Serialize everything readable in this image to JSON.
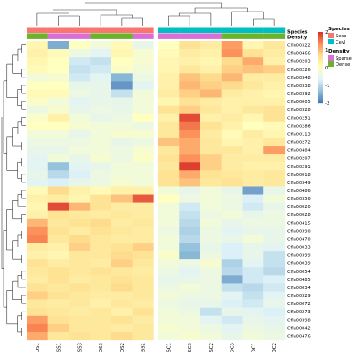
{
  "chart_data": {
    "type": "heatmap",
    "title": "",
    "xlabel": "",
    "ylabel": "",
    "columns": [
      "DS1",
      "SS1",
      "SS3",
      "DS3",
      "DS2",
      "SS2",
      "SC1",
      "SC3",
      "SC2",
      "DC3",
      "DC1",
      "DC2"
    ],
    "rows": [
      "Cflu00322",
      "Cflu00466",
      "Cflu00203",
      "Cflu00226",
      "Cflu00348",
      "Cflu00338",
      "Cflu00392",
      "Cflu00005",
      "Cflu00328",
      "Cflu00251",
      "Cflu00286",
      "Cflu00113",
      "Cflu00272",
      "Cflu00484",
      "Cflu00207",
      "Cflu00291",
      "Cflu00018",
      "Cflu00349",
      "Cflu00486",
      "Cflu00356",
      "Cflu00020",
      "Cflu00028",
      "Cflu00415",
      "Cflu00390",
      "Cflu00470",
      "Cflu00033",
      "Cflu00399",
      "Cflu00039",
      "Cflu00054",
      "Cflu00485",
      "Cflu00034",
      "Cflu00329",
      "Cflu00072",
      "Cflu00273",
      "Cflu00398",
      "Cflu00042",
      "Cflu00476"
    ],
    "values": [
      [
        0.2,
        -1.5,
        0.0,
        -0.3,
        0.1,
        -0.5,
        0.0,
        0.6,
        0.4,
        1.2,
        0.2,
        0.5
      ],
      [
        0.3,
        0.1,
        -0.4,
        -0.6,
        0.2,
        -0.2,
        0.1,
        0.4,
        0.3,
        1.3,
        0.6,
        0.4
      ],
      [
        0.2,
        0.0,
        -0.8,
        -0.9,
        0.0,
        -0.2,
        0.2,
        0.3,
        0.2,
        0.7,
        1.1,
        0.3
      ],
      [
        0.1,
        0.0,
        -0.9,
        -0.8,
        -0.1,
        -0.3,
        0.2,
        0.5,
        0.3,
        0.8,
        0.9,
        0.8
      ],
      [
        -0.3,
        -0.2,
        -0.8,
        -0.6,
        -1.4,
        -0.4,
        0.3,
        0.9,
        0.7,
        1.0,
        0.4,
        0.4
      ],
      [
        0.0,
        0.0,
        -0.5,
        -0.5,
        -1.7,
        -0.6,
        0.3,
        1.0,
        0.8,
        0.7,
        0.5,
        0.3
      ],
      [
        0.1,
        0.1,
        -0.4,
        -0.5,
        -0.9,
        -0.3,
        0.4,
        0.8,
        1.0,
        0.4,
        0.3,
        0.2
      ],
      [
        -0.1,
        -0.3,
        -0.6,
        -0.5,
        -0.5,
        -0.3,
        0.2,
        0.6,
        0.4,
        0.3,
        0.3,
        0.3
      ],
      [
        -0.4,
        -0.2,
        -0.5,
        -0.4,
        -0.5,
        -0.3,
        0.6,
        0.8,
        0.5,
        0.3,
        0.5,
        0.6
      ],
      [
        -0.1,
        0.3,
        -0.3,
        -0.5,
        -0.4,
        0.0,
        0.3,
        1.8,
        0.3,
        0.4,
        0.2,
        0.6
      ],
      [
        0.0,
        0.0,
        -0.2,
        -0.3,
        -0.3,
        -0.4,
        0.5,
        1.5,
        0.6,
        0.3,
        0.0,
        0.1
      ],
      [
        -0.3,
        -0.3,
        -0.5,
        -0.3,
        -0.2,
        -0.2,
        0.5,
        1.3,
        0.4,
        0.1,
        0.4,
        0.2
      ],
      [
        -0.4,
        -0.4,
        -0.4,
        -0.3,
        -0.5,
        -0.4,
        0.9,
        1.1,
        0.5,
        0.2,
        0.3,
        0.5
      ],
      [
        -0.5,
        -0.5,
        -0.3,
        -0.3,
        -0.4,
        -0.2,
        0.5,
        1.1,
        0.5,
        0.5,
        0.3,
        1.2
      ],
      [
        -0.6,
        -0.3,
        -0.5,
        -0.2,
        -0.4,
        -0.1,
        0.6,
        1.3,
        0.8,
        0.4,
        0.4,
        0.4
      ],
      [
        -0.6,
        -1.3,
        -0.6,
        -0.5,
        -0.3,
        -0.3,
        0.5,
        1.9,
        0.8,
        0.4,
        0.3,
        0.3
      ],
      [
        -0.5,
        -1.0,
        -0.7,
        -0.4,
        -0.3,
        -0.3,
        0.6,
        1.1,
        0.6,
        0.5,
        0.4,
        0.5
      ],
      [
        -0.6,
        -0.7,
        -0.5,
        -0.4,
        -0.2,
        -0.3,
        0.6,
        0.9,
        0.5,
        0.6,
        0.4,
        0.5
      ],
      [
        0.1,
        0.7,
        0.3,
        0.1,
        0.3,
        0.3,
        -0.3,
        -0.5,
        -0.3,
        -0.5,
        -1.6,
        -0.5
      ],
      [
        0.3,
        0.4,
        0.2,
        0.6,
        0.9,
        1.7,
        0.0,
        -0.4,
        -0.3,
        -0.4,
        -0.7,
        -0.3
      ],
      [
        0.2,
        1.8,
        1.0,
        0.6,
        0.4,
        0.4,
        -0.3,
        -0.8,
        -0.3,
        -0.4,
        -0.8,
        -0.5
      ],
      [
        0.3,
        0.6,
        0.5,
        0.4,
        0.5,
        0.4,
        -0.3,
        -0.9,
        -0.4,
        -0.3,
        -0.5,
        -0.4
      ],
      [
        1.0,
        0.5,
        0.6,
        0.7,
        0.4,
        0.5,
        -0.3,
        -1.0,
        -0.3,
        -0.5,
        -0.4,
        -0.4
      ],
      [
        1.3,
        0.6,
        0.4,
        0.6,
        0.5,
        0.4,
        -0.4,
        -1.1,
        -0.4,
        -0.6,
        -0.5,
        -0.5
      ],
      [
        1.4,
        0.5,
        0.7,
        0.5,
        0.4,
        0.4,
        -0.3,
        -1.0,
        -0.4,
        -0.5,
        -0.3,
        -0.5
      ],
      [
        0.4,
        0.3,
        0.8,
        0.5,
        0.6,
        0.8,
        -0.3,
        -1.3,
        -0.5,
        -0.7,
        -0.5,
        -0.6
      ],
      [
        0.3,
        0.2,
        0.5,
        0.5,
        0.7,
        0.6,
        -0.1,
        -1.4,
        -0.4,
        -0.7,
        -0.5,
        -0.9
      ],
      [
        0.6,
        0.4,
        0.5,
        0.4,
        0.8,
        0.5,
        -0.3,
        -0.4,
        -0.2,
        -1.1,
        -0.6,
        -0.9
      ],
      [
        0.5,
        0.6,
        0.5,
        0.6,
        0.5,
        0.4,
        -0.4,
        -0.6,
        -0.4,
        -1.0,
        -0.8,
        -1.0
      ],
      [
        0.4,
        0.6,
        0.4,
        0.5,
        0.6,
        0.5,
        -0.5,
        -0.5,
        -0.4,
        -1.5,
        -0.8,
        -0.7
      ],
      [
        0.6,
        0.5,
        0.6,
        0.5,
        0.7,
        0.5,
        -0.4,
        -0.3,
        -0.4,
        -0.9,
        -1.0,
        -0.8
      ],
      [
        0.8,
        0.6,
        0.5,
        0.4,
        0.4,
        0.5,
        -0.3,
        -0.4,
        -0.4,
        -0.6,
        -0.9,
        -0.6
      ],
      [
        0.5,
        0.4,
        0.5,
        0.3,
        0.5,
        0.4,
        -0.4,
        -0.5,
        -0.5,
        -0.7,
        -0.8,
        -0.5
      ],
      [
        0.6,
        0.5,
        0.4,
        0.5,
        0.3,
        0.6,
        -0.3,
        -0.4,
        -0.9,
        -0.5,
        -0.6,
        -0.7
      ],
      [
        1.2,
        0.6,
        0.5,
        0.5,
        0.6,
        0.4,
        -0.3,
        -0.3,
        -0.6,
        -0.8,
        -0.5,
        -0.6
      ],
      [
        1.4,
        0.8,
        0.5,
        0.5,
        0.4,
        0.5,
        -0.2,
        -0.3,
        -0.4,
        -0.6,
        -0.4,
        -0.5
      ],
      [
        1.1,
        0.5,
        0.6,
        0.5,
        0.7,
        0.5,
        -0.3,
        -0.2,
        -0.3,
        -0.5,
        -0.3,
        -0.4
      ]
    ],
    "annotations": {
      "Species": [
        "Sesp",
        "Sesp",
        "Sesp",
        "Sesp",
        "Sesp",
        "Sesp",
        "Cevl",
        "Cevl",
        "Cevl",
        "Cevl",
        "Cevl",
        "Cevl"
      ],
      "Density": [
        "Dense",
        "Sparse",
        "Sparse",
        "Dense",
        "Dense",
        "Sparse",
        "Sparse",
        "Sparse",
        "Sparse",
        "Dense",
        "Dense",
        "Dense"
      ]
    },
    "color_scale": {
      "min": -2,
      "max": 2,
      "ticks": [
        2,
        1,
        0,
        -1,
        -2
      ],
      "colors": [
        "#4575b4",
        "#91bfdb",
        "#e0f3f8",
        "#ffffbf",
        "#fee090",
        "#fc8d59",
        "#d73027"
      ]
    },
    "legend": {
      "colorbar_position": "top-right",
      "groups": [
        {
          "title": "Species",
          "items": [
            {
              "label": "Sesp",
              "color": "#f8766d"
            },
            {
              "label": "Cevl",
              "color": "#00bfc4"
            }
          ]
        },
        {
          "title": "Density",
          "items": [
            {
              "label": "Sparse",
              "color": "#da70d6"
            },
            {
              "label": "Dense",
              "color": "#6ab42c"
            }
          ]
        }
      ]
    },
    "grid": false
  }
}
